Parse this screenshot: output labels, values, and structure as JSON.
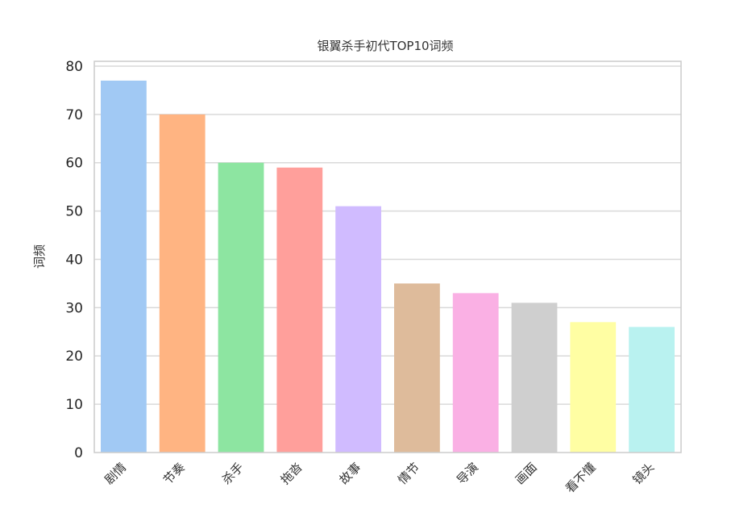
{
  "chart_data": {
    "type": "bar",
    "title": "银翼杀手初代TOP10词频",
    "xlabel": "",
    "ylabel": "词频",
    "categories": [
      "剧情",
      "节奏",
      "杀手",
      "拖沓",
      "故事",
      "情节",
      "导演",
      "画面",
      "看不懂",
      "镜头"
    ],
    "values": [
      77,
      70,
      60,
      59,
      51,
      35,
      33,
      31,
      27,
      26
    ],
    "ylim": [
      0,
      81
    ],
    "yticks": [
      0,
      10,
      20,
      30,
      40,
      50,
      60,
      70,
      80
    ],
    "grid": true,
    "legend": "none",
    "colors": [
      "#a1c9f4",
      "#ffb482",
      "#8de5a1",
      "#ff9f9b",
      "#d0bbff",
      "#debb9b",
      "#fab0e4",
      "#cfcfcf",
      "#fffea3",
      "#b9f2f0"
    ],
    "style": {
      "grid_color": "#d9d9d9",
      "frame_color": "#cccccc"
    }
  }
}
